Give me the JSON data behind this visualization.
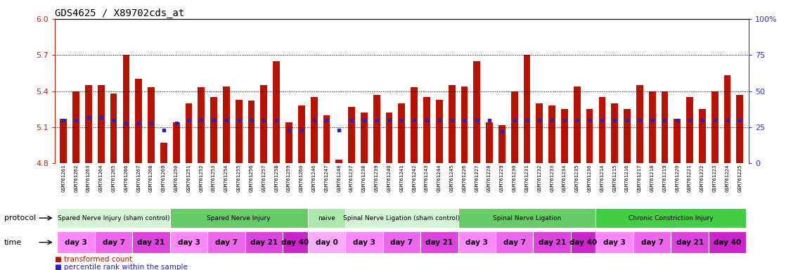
{
  "title": "GDS4625 / X89702cds_at",
  "ylim": [
    4.8,
    6.0
  ],
  "ylim_right": [
    0,
    100
  ],
  "yticks_left": [
    4.8,
    5.1,
    5.4,
    5.7,
    6.0
  ],
  "yticks_right": [
    0,
    25,
    50,
    75,
    100
  ],
  "hlines": [
    5.1,
    5.4,
    5.7
  ],
  "bar_color": "#bb1100",
  "dot_color": "#2222cc",
  "samples": [
    "GSM761261",
    "GSM761262",
    "GSM761263",
    "GSM761264",
    "GSM761265",
    "GSM761266",
    "GSM761267",
    "GSM761268",
    "GSM761269",
    "GSM761250",
    "GSM761251",
    "GSM761252",
    "GSM761253",
    "GSM761254",
    "GSM761255",
    "GSM761256",
    "GSM761257",
    "GSM761258",
    "GSM761259",
    "GSM761260",
    "GSM761246",
    "GSM761247",
    "GSM761248",
    "GSM761237",
    "GSM761238",
    "GSM761239",
    "GSM761240",
    "GSM761241",
    "GSM761242",
    "GSM761243",
    "GSM761244",
    "GSM761245",
    "GSM761226",
    "GSM761227",
    "GSM761228",
    "GSM761229",
    "GSM761230",
    "GSM761231",
    "GSM761232",
    "GSM761233",
    "GSM761234",
    "GSM761235",
    "GSM761236",
    "GSM761214",
    "GSM761215",
    "GSM761216",
    "GSM761217",
    "GSM761218",
    "GSM761219",
    "GSM761220",
    "GSM761221",
    "GSM761222",
    "GSM761223",
    "GSM761224",
    "GSM761225"
  ],
  "bar_values": [
    5.17,
    5.4,
    5.45,
    5.45,
    5.38,
    5.7,
    5.5,
    5.43,
    4.97,
    5.14,
    5.3,
    5.43,
    5.35,
    5.44,
    5.33,
    5.32,
    5.45,
    5.65,
    5.14,
    5.28,
    5.35,
    5.2,
    4.83,
    5.27,
    5.22,
    5.37,
    5.22,
    5.3,
    5.43,
    5.35,
    5.33,
    5.45,
    5.44,
    5.65,
    5.14,
    5.12,
    5.4,
    5.7,
    5.3,
    5.28,
    5.25,
    5.44,
    5.25,
    5.35,
    5.3,
    5.25,
    5.45,
    5.4,
    5.4,
    5.17,
    5.35,
    5.25,
    5.4,
    5.53,
    5.37
  ],
  "dot_pct": [
    30,
    30,
    32,
    32,
    30,
    28,
    28,
    28,
    23,
    28,
    30,
    30,
    30,
    30,
    30,
    30,
    30,
    30,
    23,
    23,
    30,
    30,
    23,
    30,
    30,
    30,
    30,
    30,
    30,
    30,
    30,
    30,
    30,
    30,
    30,
    22,
    30,
    30,
    30,
    30,
    30,
    30,
    30,
    30,
    30,
    30,
    30,
    30,
    30,
    30,
    30,
    30,
    30,
    30,
    30
  ],
  "protocols": [
    {
      "label": "Spared Nerve Injury (sham control)",
      "start": 0,
      "end": 9,
      "color": "#d4f5d4"
    },
    {
      "label": "Spared Nerve Injury",
      "start": 9,
      "end": 20,
      "color": "#66cc66"
    },
    {
      "label": "naive",
      "start": 20,
      "end": 23,
      "color": "#aaeaaa"
    },
    {
      "label": "Spinal Nerve Ligation (sham control)",
      "start": 23,
      "end": 32,
      "color": "#d4f5d4"
    },
    {
      "label": "Spinal Nerve Ligation",
      "start": 32,
      "end": 43,
      "color": "#66cc66"
    },
    {
      "label": "Chronic Constriction Injury",
      "start": 43,
      "end": 55,
      "color": "#44cc44"
    }
  ],
  "times": [
    {
      "label": "day 3",
      "start": 0,
      "end": 3,
      "color": "#ff88ff"
    },
    {
      "label": "day 7",
      "start": 3,
      "end": 6,
      "color": "#ee66ee"
    },
    {
      "label": "day 21",
      "start": 6,
      "end": 9,
      "color": "#dd44dd"
    },
    {
      "label": "day 3",
      "start": 9,
      "end": 12,
      "color": "#ff88ff"
    },
    {
      "label": "day 7",
      "start": 12,
      "end": 15,
      "color": "#ee66ee"
    },
    {
      "label": "day 21",
      "start": 15,
      "end": 18,
      "color": "#dd44dd"
    },
    {
      "label": "day 40",
      "start": 18,
      "end": 20,
      "color": "#cc22cc"
    },
    {
      "label": "day 0",
      "start": 20,
      "end": 23,
      "color": "#ffaaff"
    },
    {
      "label": "day 3",
      "start": 23,
      "end": 26,
      "color": "#ff88ff"
    },
    {
      "label": "day 7",
      "start": 26,
      "end": 29,
      "color": "#ee66ee"
    },
    {
      "label": "day 21",
      "start": 29,
      "end": 32,
      "color": "#dd44dd"
    },
    {
      "label": "day 3",
      "start": 32,
      "end": 35,
      "color": "#ff88ff"
    },
    {
      "label": "day 7",
      "start": 35,
      "end": 38,
      "color": "#ee66ee"
    },
    {
      "label": "day 21",
      "start": 38,
      "end": 41,
      "color": "#dd44dd"
    },
    {
      "label": "day 40",
      "start": 41,
      "end": 43,
      "color": "#cc22cc"
    },
    {
      "label": "day 3",
      "start": 43,
      "end": 46,
      "color": "#ff88ff"
    },
    {
      "label": "day 7",
      "start": 46,
      "end": 49,
      "color": "#ee66ee"
    },
    {
      "label": "day 21",
      "start": 49,
      "end": 52,
      "color": "#dd44dd"
    },
    {
      "label": "day 40",
      "start": 52,
      "end": 55,
      "color": "#cc22cc"
    }
  ],
  "legend_items": [
    {
      "label": "transformed count",
      "color": "#bb1100",
      "marker": "s"
    },
    {
      "label": "percentile rank within the sample",
      "color": "#2222cc",
      "marker": "s"
    }
  ],
  "bg_color": "#ffffff",
  "axis_color_left": "#cc2200",
  "axis_color_right": "#3333bb"
}
